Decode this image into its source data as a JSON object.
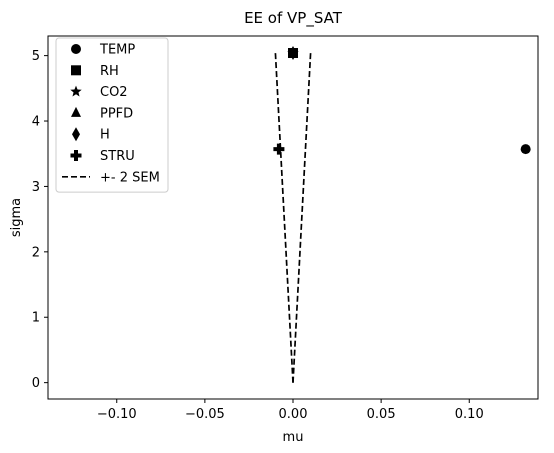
{
  "chart_data": {
    "type": "scatter",
    "title": "EE of VP_SAT",
    "xlabel": "mu",
    "ylabel": "sigma",
    "xlim": [
      -0.139,
      0.139
    ],
    "ylim": [
      -0.25,
      5.3
    ],
    "xticks": [
      -0.1,
      -0.05,
      0.0,
      0.05,
      0.1
    ],
    "xtick_labels": [
      "−0.10",
      "−0.05",
      "0.00",
      "0.05",
      "0.10"
    ],
    "yticks": [
      0,
      1,
      2,
      3,
      4,
      5
    ],
    "ytick_labels": [
      "0",
      "1",
      "2",
      "3",
      "4",
      "5"
    ],
    "grid": false,
    "legend_position": "upper-left",
    "marker_color": "#000000",
    "series": [
      {
        "name": "TEMP",
        "marker": "circle",
        "x": [
          0.132
        ],
        "y": [
          3.57
        ]
      },
      {
        "name": "RH",
        "marker": "square",
        "x": [
          0.0
        ],
        "y": [
          5.04
        ]
      },
      {
        "name": "CO2",
        "marker": "star",
        "x": [
          0.0
        ],
        "y": [
          5.04
        ]
      },
      {
        "name": "PPFD",
        "marker": "triangle",
        "x": [
          0.0
        ],
        "y": [
          5.04
        ]
      },
      {
        "name": "H",
        "marker": "diamond",
        "x": [
          0.0
        ],
        "y": [
          5.04
        ]
      },
      {
        "name": "STRU",
        "marker": "plus",
        "x": [
          -0.008
        ],
        "y": [
          3.57
        ]
      }
    ],
    "sem_band": {
      "name": "+- 2 SEM",
      "style": "dashed",
      "y": [
        0,
        5.05
      ],
      "half_width_at_top": 0.01
    }
  }
}
